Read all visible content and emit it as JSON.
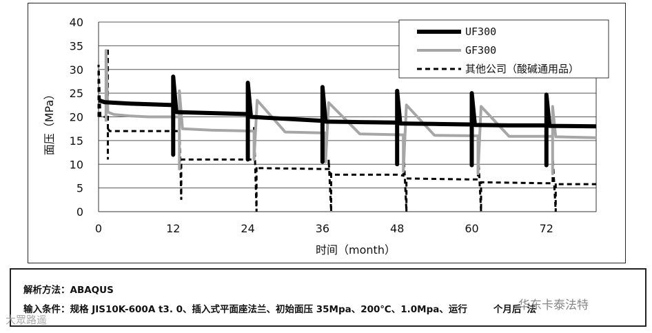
{
  "chart_data": {
    "type": "line",
    "xlabel": "时间（month）",
    "ylabel": "面压（MPa）",
    "xlim": [
      0,
      80
    ],
    "ylim": [
      0,
      40
    ],
    "x_ticks": [
      0,
      12,
      24,
      36,
      48,
      60,
      72
    ],
    "y_ticks": [
      0,
      5,
      10,
      15,
      20,
      25,
      30,
      35,
      40
    ],
    "grid": "horizontal",
    "legend_position": "top-right",
    "series": [
      {
        "name": "UF300",
        "color": "#000000",
        "style": "solid-thick",
        "x": [
          0,
          1,
          5,
          11.5,
          12,
          12,
          12,
          12.5,
          18,
          23.5,
          24,
          24,
          24,
          24.5,
          30,
          35.5,
          36,
          36,
          36,
          36.5,
          42,
          47.5,
          48,
          48,
          48,
          48.5,
          54,
          59.5,
          60,
          60,
          60,
          60.5,
          66,
          71.5,
          72,
          72,
          72,
          72.5,
          76,
          80
        ],
        "y": [
          23.5,
          23.1,
          22.8,
          22.5,
          22.5,
          12,
          28.5,
          21,
          20.8,
          20.6,
          20.6,
          11,
          27.2,
          20,
          19.6,
          19.2,
          19.2,
          10.5,
          26.3,
          19,
          18.9,
          18.8,
          18.8,
          10,
          25.5,
          18.6,
          18.5,
          18.4,
          18.4,
          9.8,
          25,
          18.3,
          18.2,
          18.2,
          18.2,
          9.8,
          24.7,
          18.1,
          18.05,
          18
        ]
      },
      {
        "name": "GF300",
        "color": "#a6a6a6",
        "style": "solid",
        "x": [
          1.2,
          1.2,
          1.5,
          2.5,
          5,
          8,
          13,
          13,
          13,
          13.5,
          18,
          25,
          25,
          25,
          25.5,
          30,
          36.5,
          36.5,
          36.5,
          37,
          42,
          49,
          49,
          49,
          49.5,
          54,
          61,
          61,
          61,
          61.5,
          66,
          73,
          73,
          73,
          73.5,
          77,
          80
        ],
        "y": [
          19,
          34,
          21,
          20.5,
          20.2,
          20,
          20,
          9,
          25.5,
          17.5,
          17.2,
          17,
          17,
          11,
          23.5,
          16.8,
          16.6,
          16.6,
          10.5,
          23,
          16.4,
          16.2,
          16.2,
          8.5,
          22.5,
          16.1,
          16,
          16,
          8,
          22.2,
          15.9,
          15.9,
          8,
          22.2,
          15.8,
          15.7,
          15.6
        ]
      },
      {
        "name": "其他公司（酸碱通用品）",
        "color": "#000000",
        "style": "dashed",
        "x": [
          0,
          0,
          0.3,
          1.5,
          1.5,
          1.5,
          1.5,
          1.8,
          12,
          13,
          13,
          13.3,
          13.3,
          13.6,
          24,
          25,
          25,
          25.4,
          25.4,
          25.6,
          36,
          37,
          37,
          37.4,
          37.4,
          37.6,
          48,
          49,
          49,
          49.5,
          49.5,
          49.8,
          60,
          61,
          61,
          61.5,
          61.5,
          61.8,
          72,
          73,
          73,
          73.5,
          73.5,
          73.8,
          80
        ],
        "y": [
          20,
          31,
          20,
          20,
          34.5,
          11,
          17.5,
          17,
          17,
          17,
          18,
          2.5,
          11,
          11,
          11,
          11,
          18,
          0,
          9.5,
          9.2,
          9,
          9,
          11,
          0,
          8,
          7.8,
          7.8,
          7.6,
          14,
          0,
          7,
          7,
          6.8,
          6.8,
          13,
          0,
          6.2,
          6.2,
          6,
          6,
          12,
          0,
          6,
          5.8,
          5.8
        ]
      }
    ]
  },
  "info": {
    "line1": "解析方法：ABAQUS",
    "line2": "输入条件：规格 JIS10K-600A t3. 0、插入式平面座法兰、初始面压 35Mpa、200℃、1.0Mpa、运行",
    "line2_tail": "个月后",
    "line2_end": "法"
  },
  "watermarks": {
    "left": "大眾路遥",
    "right": "华东卡泰法特"
  }
}
